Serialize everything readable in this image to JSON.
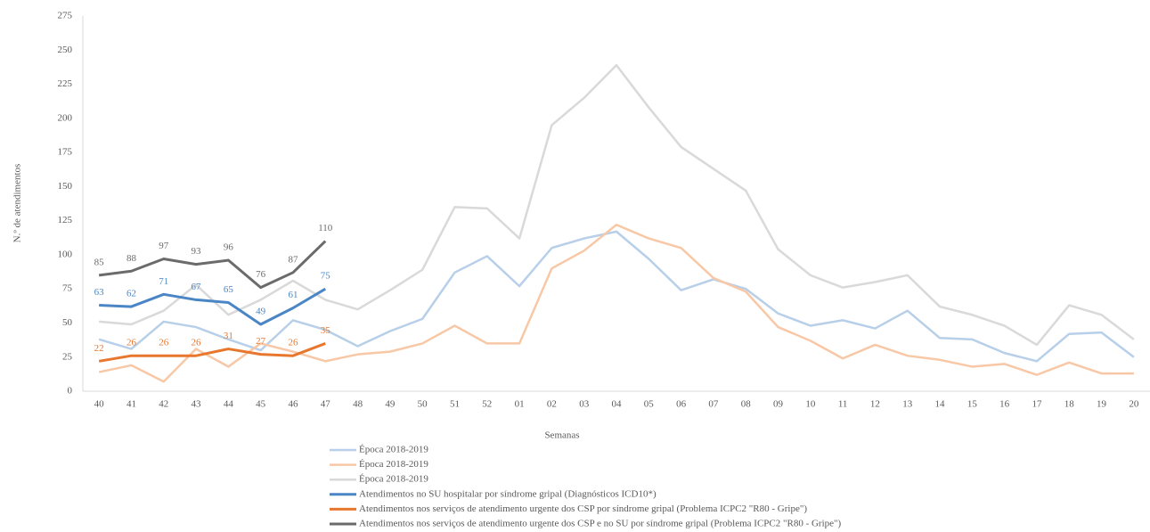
{
  "chart_data": {
    "type": "line",
    "y_label": "N.º de atendimentos",
    "x_label": "Semanas",
    "categories": [
      "40",
      "41",
      "42",
      "43",
      "44",
      "45",
      "46",
      "47",
      "48",
      "49",
      "50",
      "51",
      "52",
      "01",
      "02",
      "03",
      "04",
      "05",
      "06",
      "07",
      "08",
      "09",
      "10",
      "11",
      "12",
      "13",
      "14",
      "15",
      "16",
      "17",
      "18",
      "19",
      "20"
    ],
    "ylim": [
      0,
      275
    ],
    "yticks": [
      0,
      25,
      50,
      75,
      100,
      125,
      150,
      175,
      200,
      225,
      250,
      275
    ],
    "grid": false,
    "series": [
      {
        "name": "Época 2018-2019",
        "color": "#b7cfe8",
        "width": 2.5,
        "labels": false,
        "values": [
          38,
          31,
          51,
          47,
          38,
          30,
          52,
          45,
          33,
          44,
          53,
          87,
          99,
          77,
          105,
          112,
          117,
          97,
          74,
          82,
          75,
          57,
          48,
          52,
          46,
          59,
          39,
          38,
          28,
          22,
          42,
          43,
          25
        ]
      },
      {
        "name": "Época 2018-2019",
        "color": "#f8c8a6",
        "width": 2.5,
        "labels": false,
        "values": [
          14,
          19,
          7,
          31,
          18,
          35,
          29,
          22,
          27,
          29,
          35,
          48,
          35,
          35,
          90,
          103,
          122,
          112,
          105,
          83,
          73,
          47,
          37,
          24,
          34,
          26,
          23,
          18,
          20,
          12,
          21,
          13,
          13
        ]
      },
      {
        "name": "Época 2018-2019",
        "color": "#d9d9d9",
        "width": 2.5,
        "labels": false,
        "values": [
          51,
          49,
          59,
          78,
          56,
          67,
          81,
          67,
          60,
          74,
          89,
          135,
          134,
          112,
          195,
          215,
          239,
          208,
          179,
          163,
          147,
          104,
          85,
          76,
          80,
          85,
          62,
          56,
          48,
          34,
          63,
          56,
          38
        ]
      },
      {
        "name": "Atendimentos no SU hospitalar por síndrome gripal (Diagnósticos ICD10*)",
        "color": "#4a86c5",
        "width": 3,
        "labels": true,
        "values": [
          63,
          62,
          71,
          67,
          65,
          49,
          61,
          75,
          null,
          null,
          null,
          null,
          null,
          null,
          null,
          null,
          null,
          null,
          null,
          null,
          null,
          null,
          null,
          null,
          null,
          null,
          null,
          null,
          null,
          null,
          null,
          null,
          null
        ]
      },
      {
        "name": "Atendimentos nos serviços de atendimento urgente dos CSP por síndrome gripal (Problema ICPC2  \"R80 - Gripe\")",
        "color": "#e8772e",
        "width": 3,
        "labels": true,
        "values": [
          22,
          26,
          26,
          26,
          31,
          27,
          26,
          35,
          null,
          null,
          null,
          null,
          null,
          null,
          null,
          null,
          null,
          null,
          null,
          null,
          null,
          null,
          null,
          null,
          null,
          null,
          null,
          null,
          null,
          null,
          null,
          null,
          null
        ]
      },
      {
        "name": "Atendimentos nos serviços de atendimento urgente dos CSP e no SU por síndrome gripal (Problema ICPC2  \"R80 - Gripe\")",
        "color": "#6b6b6b",
        "width": 3,
        "labels": true,
        "values": [
          85,
          88,
          97,
          93,
          96,
          76,
          87,
          110,
          null,
          null,
          null,
          null,
          null,
          null,
          null,
          null,
          null,
          null,
          null,
          null,
          null,
          null,
          null,
          null,
          null,
          null,
          null,
          null,
          null,
          null,
          null,
          null,
          null
        ]
      }
    ]
  }
}
